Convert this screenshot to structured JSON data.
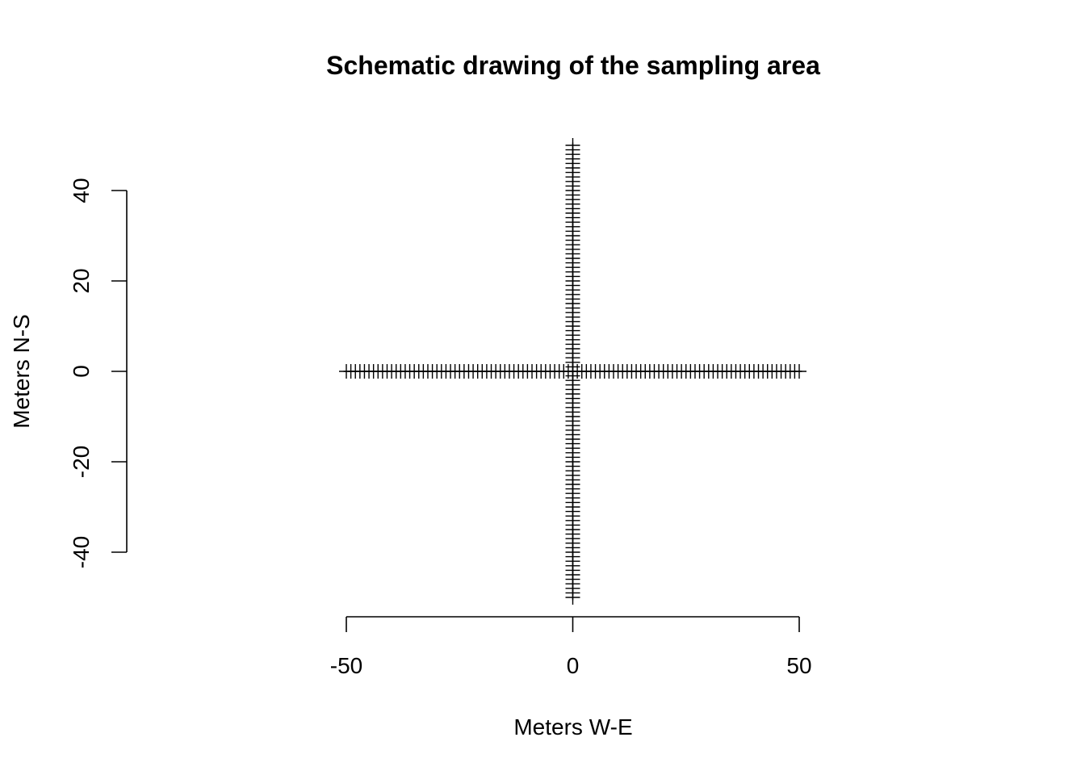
{
  "chart_data": {
    "type": "scatter",
    "title": "Schematic drawing of the sampling area",
    "xlabel": "Meters W-E",
    "ylabel": "Meters N-S",
    "xlim": [
      -50,
      50
    ],
    "ylim": [
      -50,
      50
    ],
    "xticks": [
      -50,
      0,
      50
    ],
    "yticks": [
      -40,
      -20,
      0,
      20,
      40
    ],
    "grid": false,
    "legend": "none",
    "marker": "plus",
    "series": [
      {
        "x": [
          -50,
          -49,
          -48,
          -47,
          -46,
          -45,
          -44,
          -43,
          -42,
          -41,
          -40,
          -39,
          -38,
          -37,
          -36,
          -35,
          -34,
          -33,
          -32,
          -31,
          -30,
          -29,
          -28,
          -27,
          -26,
          -25,
          -24,
          -23,
          -22,
          -21,
          -20,
          -19,
          -18,
          -17,
          -16,
          -15,
          -14,
          -13,
          -12,
          -11,
          -10,
          -9,
          -8,
          -7,
          -6,
          -5,
          -4,
          -3,
          -2,
          -1,
          0,
          1,
          2,
          3,
          4,
          5,
          6,
          7,
          8,
          9,
          10,
          11,
          12,
          13,
          14,
          15,
          16,
          17,
          18,
          19,
          20,
          21,
          22,
          23,
          24,
          25,
          26,
          27,
          28,
          29,
          30,
          31,
          32,
          33,
          34,
          35,
          36,
          37,
          38,
          39,
          40,
          41,
          42,
          43,
          44,
          45,
          46,
          47,
          48,
          49,
          50
        ],
        "y": [
          0,
          0,
          0,
          0,
          0,
          0,
          0,
          0,
          0,
          0,
          0,
          0,
          0,
          0,
          0,
          0,
          0,
          0,
          0,
          0,
          0,
          0,
          0,
          0,
          0,
          0,
          0,
          0,
          0,
          0,
          0,
          0,
          0,
          0,
          0,
          0,
          0,
          0,
          0,
          0,
          0,
          0,
          0,
          0,
          0,
          0,
          0,
          0,
          0,
          0,
          0,
          0,
          0,
          0,
          0,
          0,
          0,
          0,
          0,
          0,
          0,
          0,
          0,
          0,
          0,
          0,
          0,
          0,
          0,
          0,
          0,
          0,
          0,
          0,
          0,
          0,
          0,
          0,
          0,
          0,
          0,
          0,
          0,
          0,
          0,
          0,
          0,
          0,
          0,
          0,
          0,
          0,
          0,
          0,
          0,
          0,
          0,
          0,
          0,
          0,
          0
        ]
      },
      {
        "x": [
          0,
          0,
          0,
          0,
          0,
          0,
          0,
          0,
          0,
          0,
          0,
          0,
          0,
          0,
          0,
          0,
          0,
          0,
          0,
          0,
          0,
          0,
          0,
          0,
          0,
          0,
          0,
          0,
          0,
          0,
          0,
          0,
          0,
          0,
          0,
          0,
          0,
          0,
          0,
          0,
          0,
          0,
          0,
          0,
          0,
          0,
          0,
          0,
          0,
          0,
          0,
          0,
          0,
          0,
          0,
          0,
          0,
          0,
          0,
          0,
          0,
          0,
          0,
          0,
          0,
          0,
          0,
          0,
          0,
          0,
          0,
          0,
          0,
          0,
          0,
          0,
          0,
          0,
          0,
          0,
          0,
          0,
          0,
          0,
          0,
          0,
          0,
          0,
          0,
          0,
          0,
          0,
          0,
          0,
          0,
          0,
          0,
          0,
          0,
          0,
          0
        ],
        "y": [
          -50,
          -49,
          -48,
          -47,
          -46,
          -45,
          -44,
          -43,
          -42,
          -41,
          -40,
          -39,
          -38,
          -37,
          -36,
          -35,
          -34,
          -33,
          -32,
          -31,
          -30,
          -29,
          -28,
          -27,
          -26,
          -25,
          -24,
          -23,
          -22,
          -21,
          -20,
          -19,
          -18,
          -17,
          -16,
          -15,
          -14,
          -13,
          -12,
          -11,
          -10,
          -9,
          -8,
          -7,
          -6,
          -5,
          -4,
          -3,
          -2,
          -1,
          0,
          1,
          2,
          3,
          4,
          5,
          6,
          7,
          8,
          9,
          10,
          11,
          12,
          13,
          14,
          15,
          16,
          17,
          18,
          19,
          20,
          21,
          22,
          23,
          24,
          25,
          26,
          27,
          28,
          29,
          30,
          31,
          32,
          33,
          34,
          35,
          36,
          37,
          38,
          39,
          40,
          41,
          42,
          43,
          44,
          45,
          46,
          47,
          48,
          49,
          50
        ]
      }
    ]
  }
}
